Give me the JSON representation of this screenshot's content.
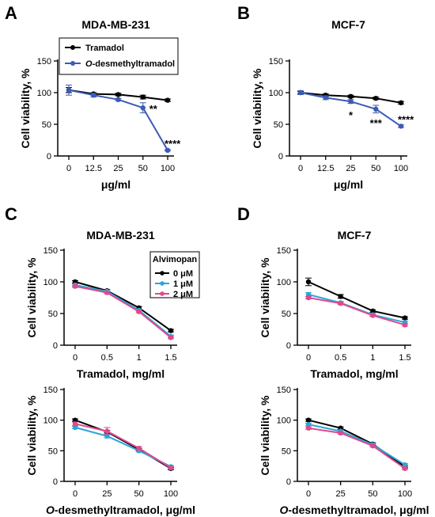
{
  "chart_data": [
    {
      "panel": "A",
      "type": "line",
      "title": "MDA-MB-231",
      "xlabel": "μg/ml",
      "ylabel": "Cell viability, %",
      "categories": [
        "0",
        "12.5",
        "25",
        "50",
        "100"
      ],
      "ylim": [
        0,
        150
      ],
      "yticks": [
        0,
        50,
        100,
        150
      ],
      "legend": {
        "placement": "top-left",
        "title": ""
      },
      "series": [
        {
          "name": "Tramadol",
          "color": "#000000",
          "values": [
            104,
            98,
            97,
            93,
            88
          ],
          "errors": [
            4,
            2,
            2,
            3,
            2
          ]
        },
        {
          "name": "O-desmethyltramadol",
          "name_italic": "O",
          "name_rest": "-desmethyltramadol",
          "color": "#3B5BB5",
          "values": [
            104,
            96,
            89,
            76,
            9
          ],
          "errors": [
            8,
            3,
            2,
            8,
            1
          ]
        }
      ],
      "annotations": [
        {
          "category": "50",
          "text": "**",
          "series": 1
        },
        {
          "category": "100",
          "text": "****",
          "series": 1
        }
      ]
    },
    {
      "panel": "B",
      "type": "line",
      "title": "MCF-7",
      "xlabel": "μg/ml",
      "ylabel": "Cell viability, %",
      "categories": [
        "0",
        "12.5",
        "25",
        "50",
        "100"
      ],
      "ylim": [
        0,
        150
      ],
      "yticks": [
        0,
        50,
        100,
        150
      ],
      "series": [
        {
          "name": "Tramadol",
          "color": "#000000",
          "values": [
            100,
            96,
            94,
            91,
            84
          ],
          "errors": [
            2,
            2,
            2,
            2,
            2
          ]
        },
        {
          "name": "O-desmethyltramadol",
          "color": "#3B5BB5",
          "values": [
            100,
            92,
            86,
            74,
            47
          ],
          "errors": [
            3,
            3,
            3,
            6,
            2
          ]
        }
      ],
      "annotations": [
        {
          "category": "25",
          "text": "*",
          "series": 1
        },
        {
          "category": "50",
          "text": "***",
          "series": 1
        },
        {
          "category": "100",
          "text": "****",
          "series": 1
        }
      ]
    },
    {
      "panel": "C",
      "type": "line",
      "title": "MDA-MB-231",
      "xlabel": "Tramadol, mg/ml",
      "ylabel": "Cell viability, %",
      "categories": [
        "0",
        "0.5",
        "1",
        "1.5"
      ],
      "ylim": [
        0,
        150
      ],
      "yticks": [
        0,
        50,
        100,
        150
      ],
      "legend": {
        "placement": "top-right",
        "title": "Alvimopan"
      },
      "series": [
        {
          "name": "0 μM",
          "color": "#000000",
          "values": [
            100,
            86,
            59,
            23
          ],
          "errors": [
            2,
            2,
            2,
            2
          ]
        },
        {
          "name": "1 μM",
          "color": "#2AA7D6",
          "values": [
            95,
            85,
            55,
            14
          ],
          "errors": [
            2,
            2,
            2,
            2
          ]
        },
        {
          "name": "2 μM",
          "color": "#E0488E",
          "values": [
            93,
            83,
            53,
            12
          ],
          "errors": [
            2,
            2,
            2,
            2
          ]
        }
      ]
    },
    {
      "panel": "D",
      "type": "line",
      "title": "MCF-7",
      "xlabel": "Tramadol, mg/ml",
      "ylabel": "Cell viability, %",
      "categories": [
        "0",
        "0.5",
        "1",
        "1.5"
      ],
      "ylim": [
        0,
        150
      ],
      "yticks": [
        0,
        50,
        100,
        150
      ],
      "series": [
        {
          "name": "0 μM",
          "color": "#000000",
          "values": [
            100,
            77,
            54,
            43
          ],
          "errors": [
            6,
            3,
            2,
            2
          ]
        },
        {
          "name": "1 μM",
          "color": "#2AA7D6",
          "values": [
            80,
            67,
            48,
            36
          ],
          "errors": [
            3,
            2,
            2,
            2
          ]
        },
        {
          "name": "2 μM",
          "color": "#E0488E",
          "values": [
            75,
            66,
            47,
            32
          ],
          "errors": [
            2,
            2,
            2,
            2
          ]
        }
      ]
    },
    {
      "panel": "C-lower",
      "type": "line",
      "title": "",
      "xlabel": "O-desmethyltramadol, μg/ml",
      "xlabel_italic": "O",
      "xlabel_rest": "-desmethyltramadol, μg/ml",
      "ylabel": "Cell viability, %",
      "categories": [
        "0",
        "25",
        "50",
        "100"
      ],
      "ylim": [
        0,
        150
      ],
      "yticks": [
        0,
        50,
        100,
        150
      ],
      "series": [
        {
          "name": "0 μM",
          "color": "#000000",
          "values": [
            100,
            81,
            52,
            21
          ],
          "errors": [
            2,
            2,
            2,
            2
          ]
        },
        {
          "name": "1 μM",
          "color": "#2AA7D6",
          "values": [
            88,
            74,
            50,
            24
          ],
          "errors": [
            2,
            3,
            2,
            2
          ]
        },
        {
          "name": "2 μM",
          "color": "#E0488E",
          "values": [
            94,
            82,
            54,
            22
          ],
          "errors": [
            3,
            6,
            3,
            2
          ]
        }
      ]
    },
    {
      "panel": "D-lower",
      "type": "line",
      "title": "",
      "xlabel": "O-desmethyltramadol, μg/ml",
      "xlabel_italic": "O",
      "xlabel_rest": "-desmethyltramadol, μg/ml",
      "ylabel": "Cell viability, %",
      "categories": [
        "0",
        "25",
        "50",
        "100"
      ],
      "ylim": [
        0,
        150
      ],
      "yticks": [
        0,
        50,
        100,
        150
      ],
      "series": [
        {
          "name": "0 μM",
          "color": "#000000",
          "values": [
            100,
            87,
            61,
            24
          ],
          "errors": [
            2,
            2,
            2,
            2
          ]
        },
        {
          "name": "1 μM",
          "color": "#2AA7D6",
          "values": [
            93,
            82,
            60,
            27
          ],
          "errors": [
            2,
            2,
            2,
            2
          ]
        },
        {
          "name": "2 μM",
          "color": "#E0488E",
          "values": [
            87,
            79,
            58,
            21
          ],
          "errors": [
            2,
            2,
            2,
            2
          ]
        }
      ]
    }
  ]
}
